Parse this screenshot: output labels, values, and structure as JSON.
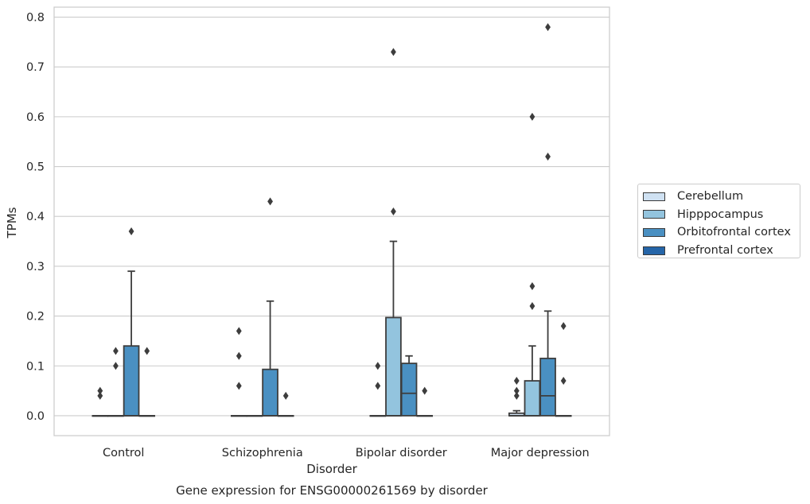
{
  "chart_data": {
    "type": "box",
    "title": "",
    "caption": "Gene expression for ENSG00000261569 by disorder",
    "xlabel": "Disorder",
    "ylabel": "TPMs",
    "ylim": [
      -0.04,
      0.82
    ],
    "yticks": [
      0.0,
      0.1,
      0.2,
      0.3,
      0.4,
      0.5,
      0.6,
      0.7,
      0.8
    ],
    "ytick_labels": [
      "0.0",
      "0.1",
      "0.2",
      "0.3",
      "0.4",
      "0.5",
      "0.6",
      "0.7",
      "0.8"
    ],
    "grid": "horizontal",
    "legend_position": "right",
    "categories": [
      "Control",
      "Schizophrenia",
      "Bipolar disorder",
      "Major depression"
    ],
    "series": [
      {
        "name": "Cerebellum",
        "color": "#cfe1f2",
        "boxes": [
          {
            "q1": 0,
            "median": 0,
            "q3": 0,
            "whislo": 0,
            "whishi": 0,
            "fliers": [
              0.04,
              0.05
            ]
          },
          {
            "q1": 0,
            "median": 0,
            "q3": 0,
            "whislo": 0,
            "whishi": 0,
            "fliers": [
              0.06,
              0.12,
              0.17
            ]
          },
          {
            "q1": 0,
            "median": 0,
            "q3": 0,
            "whislo": 0,
            "whishi": 0,
            "fliers": [
              0.06,
              0.1
            ]
          },
          {
            "q1": 0,
            "median": 0,
            "q3": 0.005,
            "whislo": 0,
            "whishi": 0.01,
            "fliers": [
              0.04,
              0.05,
              0.07
            ]
          }
        ]
      },
      {
        "name": "Hipppocampus",
        "color": "#93c4de",
        "boxes": [
          {
            "q1": 0,
            "median": 0,
            "q3": 0,
            "whislo": 0,
            "whishi": 0,
            "fliers": [
              0.1,
              0.13
            ]
          },
          {
            "q1": 0,
            "median": 0,
            "q3": 0,
            "whislo": 0,
            "whishi": 0,
            "fliers": []
          },
          {
            "q1": 0,
            "median": 0,
            "q3": 0.197,
            "whislo": 0,
            "whishi": 0.35,
            "fliers": [
              0.41,
              0.73
            ]
          },
          {
            "q1": 0,
            "median": 0,
            "q3": 0.07,
            "whislo": 0,
            "whishi": 0.14,
            "fliers": [
              0.22,
              0.26,
              0.6
            ]
          }
        ]
      },
      {
        "name": "Orbitofrontal cortex",
        "color": "#4a90c2",
        "boxes": [
          {
            "q1": 0,
            "median": 0,
            "q3": 0.14,
            "whislo": 0,
            "whishi": 0.29,
            "fliers": [
              0.37
            ]
          },
          {
            "q1": 0,
            "median": 0,
            "q3": 0.093,
            "whislo": 0,
            "whishi": 0.23,
            "fliers": [
              0.43
            ]
          },
          {
            "q1": 0,
            "median": 0.045,
            "q3": 0.105,
            "whislo": 0,
            "whishi": 0.12,
            "fliers": []
          },
          {
            "q1": 0,
            "median": 0.04,
            "q3": 0.115,
            "whislo": 0,
            "whishi": 0.21,
            "fliers": [
              0.52,
              0.78
            ]
          }
        ]
      },
      {
        "name": "Prefrontal cortex",
        "color": "#2565a8",
        "boxes": [
          {
            "q1": 0,
            "median": 0,
            "q3": 0,
            "whislo": 0,
            "whishi": 0,
            "fliers": [
              0.13
            ]
          },
          {
            "q1": 0,
            "median": 0,
            "q3": 0,
            "whislo": 0,
            "whishi": 0,
            "fliers": [
              0.04
            ]
          },
          {
            "q1": 0,
            "median": 0,
            "q3": 0,
            "whislo": 0,
            "whishi": 0,
            "fliers": [
              0.05
            ]
          },
          {
            "q1": 0,
            "median": 0,
            "q3": 0,
            "whislo": 0,
            "whishi": 0,
            "fliers": [
              0.07,
              0.18
            ]
          }
        ]
      }
    ]
  }
}
